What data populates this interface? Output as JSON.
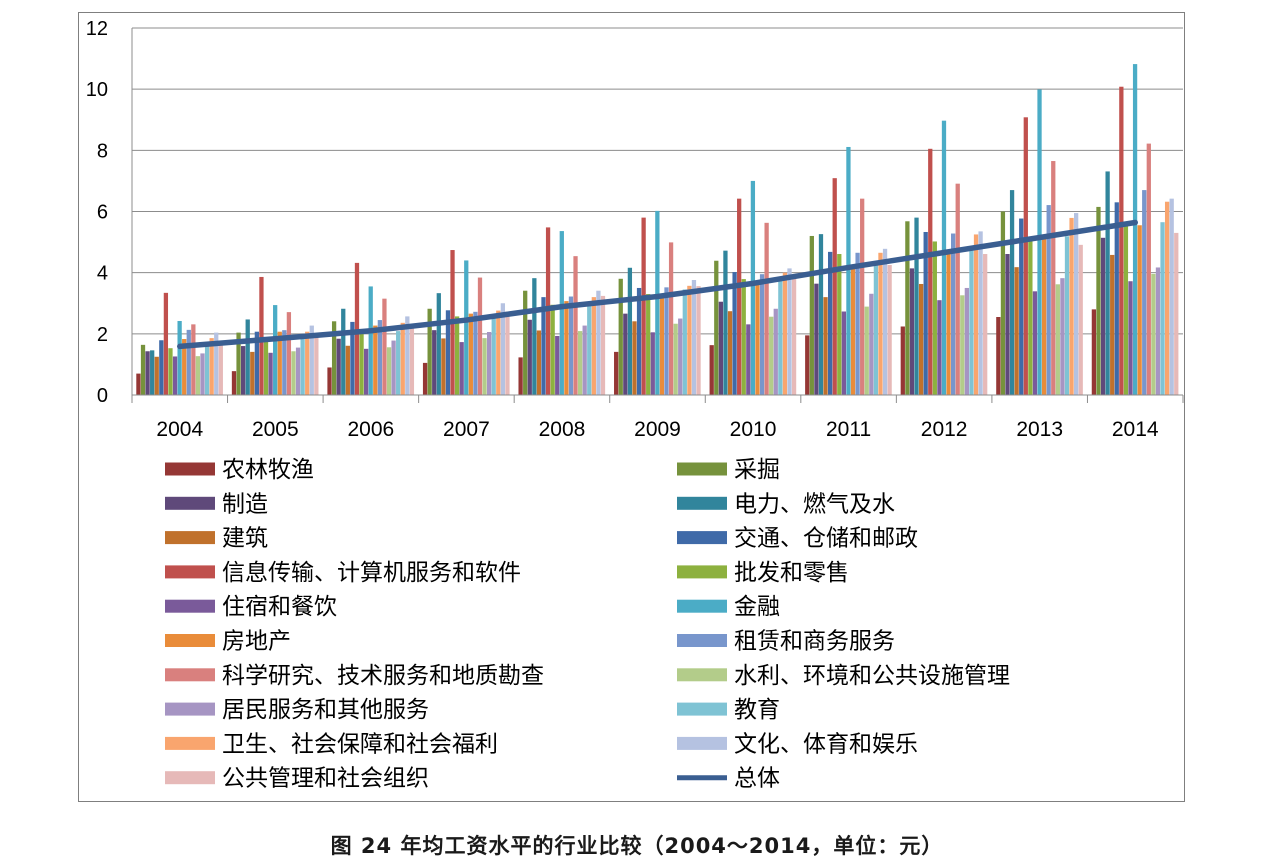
{
  "chart_data": {
    "type": "bar",
    "title": "",
    "xlabel": "",
    "ylabel": "",
    "ylim": [
      0,
      12
    ],
    "yticks": [
      0,
      2,
      4,
      6,
      8,
      10,
      12
    ],
    "categories": [
      "2004",
      "2005",
      "2006",
      "2007",
      "2008",
      "2009",
      "2010",
      "2011",
      "2012",
      "2013",
      "2014"
    ],
    "series": [
      {
        "name": "农林牧渔",
        "color": "#953735",
        "values": [
          0.7,
          0.78,
          0.9,
          1.05,
          1.23,
          1.41,
          1.63,
          1.95,
          2.24,
          2.55,
          2.8
        ]
      },
      {
        "name": "采掘",
        "color": "#76923c",
        "values": [
          1.64,
          2.04,
          2.41,
          2.82,
          3.41,
          3.8,
          4.39,
          5.2,
          5.68,
          6.0,
          6.15
        ]
      },
      {
        "name": "制造",
        "color": "#5f497a",
        "values": [
          1.43,
          1.6,
          1.84,
          2.12,
          2.46,
          2.66,
          3.05,
          3.64,
          4.14,
          4.61,
          5.14
        ]
      },
      {
        "name": "电力、燃气及水",
        "color": "#31859c",
        "values": [
          1.46,
          2.47,
          2.82,
          3.33,
          3.82,
          4.16,
          4.72,
          5.26,
          5.8,
          6.7,
          7.31
        ]
      },
      {
        "name": "建筑",
        "color": "#c0712c",
        "values": [
          1.25,
          1.41,
          1.61,
          1.85,
          2.11,
          2.41,
          2.74,
          3.2,
          3.63,
          4.18,
          4.58
        ]
      },
      {
        "name": "交通、仓储和邮政",
        "color": "#3f6aa8",
        "values": [
          1.79,
          2.07,
          2.39,
          2.77,
          3.2,
          3.5,
          4.02,
          4.68,
          5.33,
          5.77,
          6.3
        ]
      },
      {
        "name": "信息传输、计算机服务和软件",
        "color": "#c0504d",
        "values": [
          3.34,
          3.86,
          4.32,
          4.74,
          5.48,
          5.8,
          6.42,
          7.09,
          8.05,
          9.08,
          10.08
        ]
      },
      {
        "name": "批发和零售",
        "color": "#8db13f",
        "values": [
          1.53,
          1.77,
          2.12,
          2.57,
          2.95,
          3.3,
          3.79,
          4.61,
          5.02,
          5.05,
          5.58
        ]
      },
      {
        "name": "住宿和餐饮",
        "color": "#7a5a9a",
        "values": [
          1.26,
          1.38,
          1.51,
          1.73,
          1.93,
          2.05,
          2.31,
          2.73,
          3.1,
          3.39,
          3.72
        ]
      },
      {
        "name": "金融",
        "color": "#4bacc6",
        "values": [
          2.42,
          2.94,
          3.55,
          4.4,
          5.36,
          6.02,
          7.0,
          8.11,
          8.97,
          9.99,
          10.82
        ]
      },
      {
        "name": "房地产",
        "color": "#e98c3a",
        "values": [
          1.83,
          2.07,
          2.27,
          2.66,
          3.07,
          3.25,
          3.61,
          4.23,
          4.66,
          5.12,
          5.55
        ]
      },
      {
        "name": "租赁和商务服务",
        "color": "#7896cc",
        "values": [
          2.13,
          2.12,
          2.45,
          2.72,
          3.22,
          3.52,
          3.95,
          4.65,
          5.28,
          6.21,
          6.7
        ]
      },
      {
        "name": "科学研究、技术服务和地质勘查",
        "color": "#d9807e",
        "values": [
          2.31,
          2.71,
          3.15,
          3.84,
          4.54,
          4.99,
          5.63,
          6.42,
          6.91,
          7.65,
          8.22
        ]
      },
      {
        "name": "水利、环境和公共设施管理",
        "color": "#b3cc8a",
        "values": [
          1.27,
          1.43,
          1.56,
          1.86,
          2.09,
          2.33,
          2.56,
          2.89,
          3.26,
          3.62,
          3.96
        ]
      },
      {
        "name": "居民服务和其他服务",
        "color": "#a695c3",
        "values": [
          1.36,
          1.55,
          1.78,
          2.06,
          2.27,
          2.5,
          2.82,
          3.31,
          3.5,
          3.82,
          4.17
        ]
      },
      {
        "name": "教育",
        "color": "#7fc3d4",
        "values": [
          1.61,
          1.83,
          2.09,
          2.61,
          2.92,
          3.45,
          3.8,
          4.36,
          4.78,
          5.19,
          5.65
        ]
      },
      {
        "name": "卫生、社会保障和社会福利",
        "color": "#f9a56e",
        "values": [
          1.86,
          2.07,
          2.36,
          2.76,
          3.2,
          3.57,
          4.0,
          4.65,
          5.25,
          5.79,
          6.32
        ]
      },
      {
        "name": "文化、体育和娱乐",
        "color": "#b5c2e1",
        "values": [
          2.04,
          2.27,
          2.57,
          3.0,
          3.41,
          3.76,
          4.14,
          4.78,
          5.35,
          5.95,
          6.42
        ]
      },
      {
        "name": "公共管理和社会组织",
        "color": "#e6b9b8",
        "values": [
          1.76,
          2.02,
          2.28,
          2.73,
          3.24,
          3.56,
          3.85,
          4.25,
          4.61,
          4.91,
          5.3
        ]
      }
    ],
    "line_series": {
      "name": "总体",
      "color": "#3a5e91",
      "values": [
        1.59,
        1.84,
        2.1,
        2.45,
        2.89,
        3.22,
        3.65,
        4.17,
        4.66,
        5.15,
        5.64
      ]
    },
    "legend_position": "bottom"
  },
  "caption": "图 24 年均工资水平的行业比较（2004～2014，单位：元）"
}
